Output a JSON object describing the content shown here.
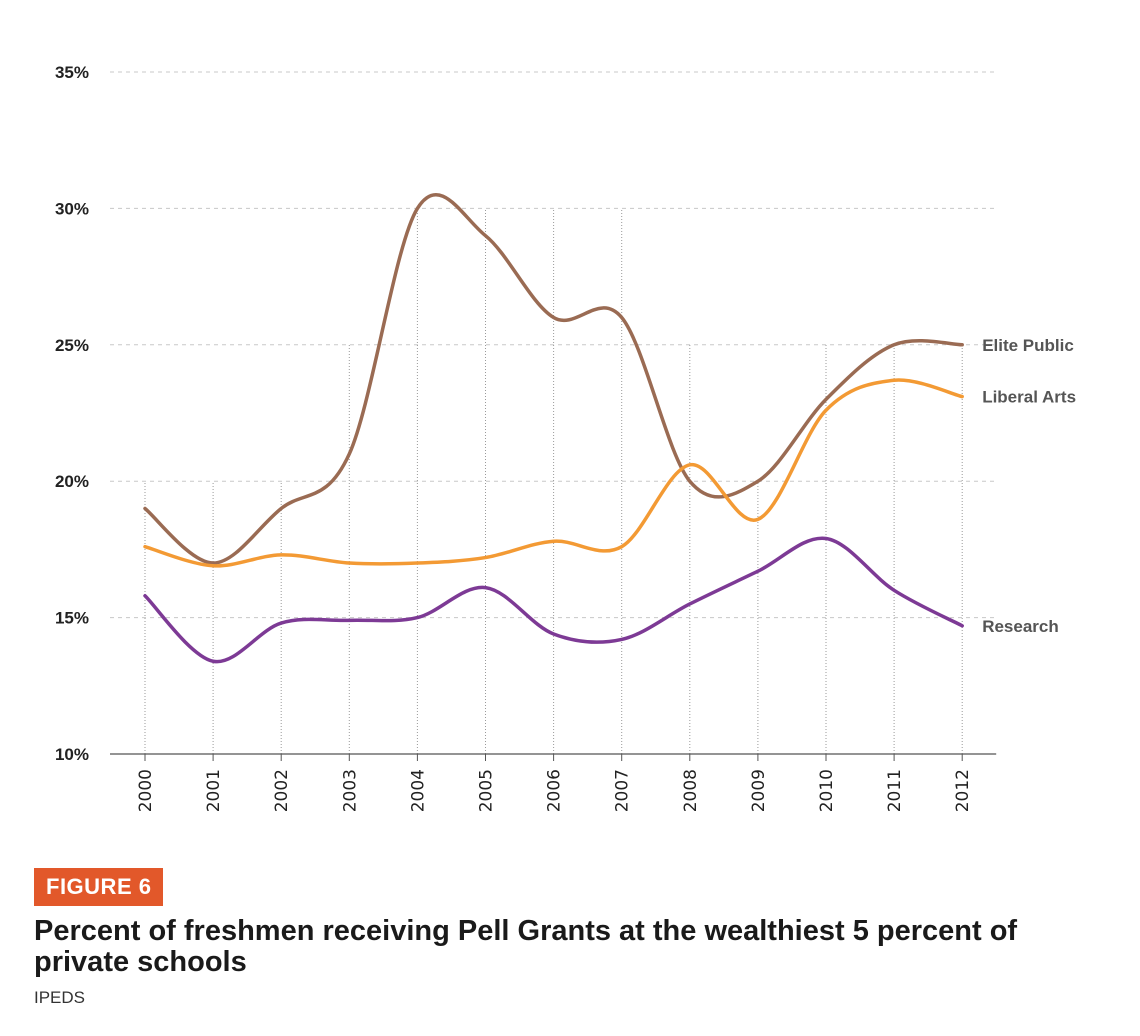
{
  "figure": {
    "badge": "FIGURE 6",
    "title": "Percent of freshmen receiving Pell Grants at the wealthiest 5 percent of private schools",
    "source": "IPEDS"
  },
  "chart_data": {
    "type": "line",
    "title": "Percent of freshmen receiving Pell Grants at the wealthiest 5 percent of private schools",
    "xlabel": "",
    "ylabel": "",
    "categories": [
      "2000",
      "2001",
      "2002",
      "2003",
      "2004",
      "2005",
      "2006",
      "2007",
      "2008",
      "2009",
      "2010",
      "2011",
      "2012"
    ],
    "y_ticks": [
      "10%",
      "15%",
      "20%",
      "25%",
      "30%",
      "35%"
    ],
    "y_tick_values": [
      10,
      15,
      20,
      25,
      30,
      35
    ],
    "ylim": [
      10,
      35
    ],
    "grid": true,
    "legend": "direct labels at line ends (right)",
    "series": [
      {
        "name": "Elite Public",
        "color": "#9a6b53",
        "values": [
          19.0,
          17.0,
          19.0,
          21.0,
          30.0,
          29.0,
          26.0,
          26.0,
          20.0,
          20.0,
          23.0,
          25.0,
          25.0
        ]
      },
      {
        "name": "Liberal Arts",
        "color": "#f39a34",
        "values": [
          17.6,
          16.9,
          17.3,
          17.0,
          17.0,
          17.2,
          17.8,
          17.6,
          20.6,
          18.6,
          22.6,
          23.7,
          23.1
        ]
      },
      {
        "name": "Research",
        "color": "#7d3a95",
        "values": [
          15.8,
          13.4,
          14.8,
          14.9,
          15.0,
          16.1,
          14.4,
          14.2,
          15.5,
          16.7,
          17.9,
          16.0,
          14.7
        ]
      }
    ]
  }
}
